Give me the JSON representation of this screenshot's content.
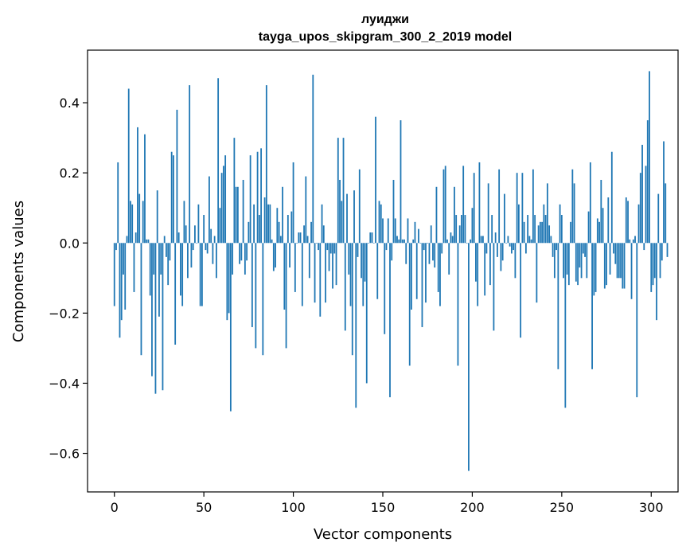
{
  "chart_data": {
    "type": "bar",
    "title": "луиджи",
    "subtitle": "tayga_upos_skipgram_300_2_2019 model",
    "xlabel": "Vector components",
    "ylabel": "Components values",
    "xlim": [
      -15,
      315
    ],
    "ylim": [
      -0.71,
      0.55
    ],
    "xticks": [
      0,
      50,
      100,
      150,
      200,
      250,
      300
    ],
    "yticks": [
      0.4,
      0.2,
      0.0,
      -0.2,
      -0.4,
      -0.6
    ],
    "ytick_labels": [
      "0.4",
      "0.2",
      "0.0",
      "−0.2",
      "−0.4",
      "−0.6"
    ],
    "bar_color": "#1f77b4",
    "values": [
      -0.18,
      -0.02,
      0.23,
      -0.27,
      -0.22,
      -0.09,
      -0.19,
      0.02,
      0.44,
      0.12,
      0.11,
      -0.14,
      0.03,
      0.33,
      0.14,
      -0.32,
      0.12,
      0.31,
      0.01,
      0.01,
      -0.15,
      -0.38,
      -0.09,
      -0.43,
      0.15,
      -0.21,
      -0.09,
      -0.42,
      0.02,
      -0.04,
      -0.12,
      -0.05,
      0.26,
      0.25,
      -0.29,
      0.38,
      0.03,
      -0.15,
      -0.18,
      0.12,
      0.05,
      -0.1,
      0.45,
      -0.07,
      -0.02,
      0.05,
      0.0,
      0.11,
      -0.18,
      -0.18,
      0.08,
      -0.02,
      -0.03,
      0.19,
      0.04,
      -0.06,
      0.02,
      -0.1,
      0.47,
      0.1,
      0.2,
      0.22,
      0.25,
      -0.22,
      -0.2,
      -0.48,
      -0.09,
      0.3,
      0.16,
      0.16,
      -0.06,
      -0.05,
      0.18,
      -0.09,
      -0.05,
      0.06,
      0.25,
      -0.24,
      0.11,
      -0.3,
      0.26,
      0.08,
      0.27,
      -0.32,
      0.13,
      0.45,
      0.11,
      0.11,
      0.01,
      -0.08,
      -0.07,
      0.1,
      0.06,
      0.02,
      0.16,
      -0.19,
      -0.3,
      0.08,
      -0.07,
      0.09,
      0.23,
      -0.14,
      0.0,
      0.03,
      0.03,
      -0.18,
      0.05,
      0.19,
      0.02,
      -0.1,
      0.06,
      0.48,
      -0.17,
      0.0,
      -0.02,
      -0.21,
      0.11,
      0.05,
      -0.17,
      -0.02,
      -0.08,
      -0.03,
      -0.13,
      -0.03,
      -0.12,
      0.3,
      0.18,
      0.12,
      0.3,
      -0.25,
      0.14,
      -0.09,
      -0.18,
      -0.32,
      0.15,
      -0.47,
      -0.04,
      0.21,
      -0.1,
      -0.18,
      -0.11,
      -0.4,
      0.0,
      0.03,
      0.03,
      0.0,
      0.36,
      -0.16,
      0.12,
      0.11,
      0.07,
      -0.26,
      -0.02,
      0.07,
      -0.44,
      -0.05,
      0.18,
      0.07,
      0.02,
      0.01,
      0.35,
      0.01,
      0.01,
      -0.06,
      0.07,
      -0.35,
      -0.19,
      0.01,
      0.06,
      -0.16,
      0.04,
      0.0,
      -0.24,
      -0.02,
      -0.17,
      0.0,
      -0.06,
      0.05,
      -0.05,
      -0.07,
      0.16,
      -0.14,
      -0.18,
      -0.03,
      0.21,
      0.22,
      0.01,
      -0.09,
      0.03,
      0.02,
      0.16,
      0.08,
      -0.35,
      0.05,
      0.08,
      0.22,
      0.08,
      0.0,
      -0.65,
      0.01,
      0.1,
      0.2,
      -0.11,
      -0.18,
      0.23,
      0.02,
      0.02,
      -0.15,
      -0.03,
      0.17,
      -0.12,
      0.08,
      -0.25,
      0.03,
      -0.04,
      0.21,
      -0.08,
      -0.05,
      0.14,
      0.0,
      0.02,
      -0.01,
      -0.03,
      -0.02,
      -0.1,
      0.2,
      0.11,
      -0.27,
      0.2,
      0.06,
      -0.03,
      0.08,
      0.02,
      0.01,
      0.21,
      0.08,
      -0.17,
      0.05,
      0.06,
      0.06,
      0.11,
      0.08,
      0.17,
      0.05,
      0.02,
      -0.04,
      -0.1,
      -0.02,
      -0.36,
      0.11,
      0.08,
      -0.1,
      -0.47,
      -0.09,
      -0.12,
      0.06,
      0.21,
      0.17,
      -0.11,
      -0.12,
      -0.07,
      -0.1,
      -0.03,
      -0.04,
      -0.1,
      0.09,
      0.23,
      -0.36,
      -0.15,
      -0.14,
      0.07,
      0.06,
      0.18,
      0.1,
      -0.13,
      -0.12,
      0.13,
      -0.09,
      0.26,
      -0.03,
      -0.06,
      -0.1,
      -0.1,
      -0.1,
      -0.13,
      -0.13,
      0.13,
      0.12,
      0.01,
      -0.16,
      0.01,
      0.02,
      -0.44,
      0.11,
      0.2,
      0.28,
      -0.02,
      0.22,
      0.35,
      0.49,
      -0.14,
      -0.12,
      -0.1,
      -0.22,
      0.14,
      -0.1,
      -0.05,
      0.29,
      0.17,
      -0.04
    ]
  }
}
